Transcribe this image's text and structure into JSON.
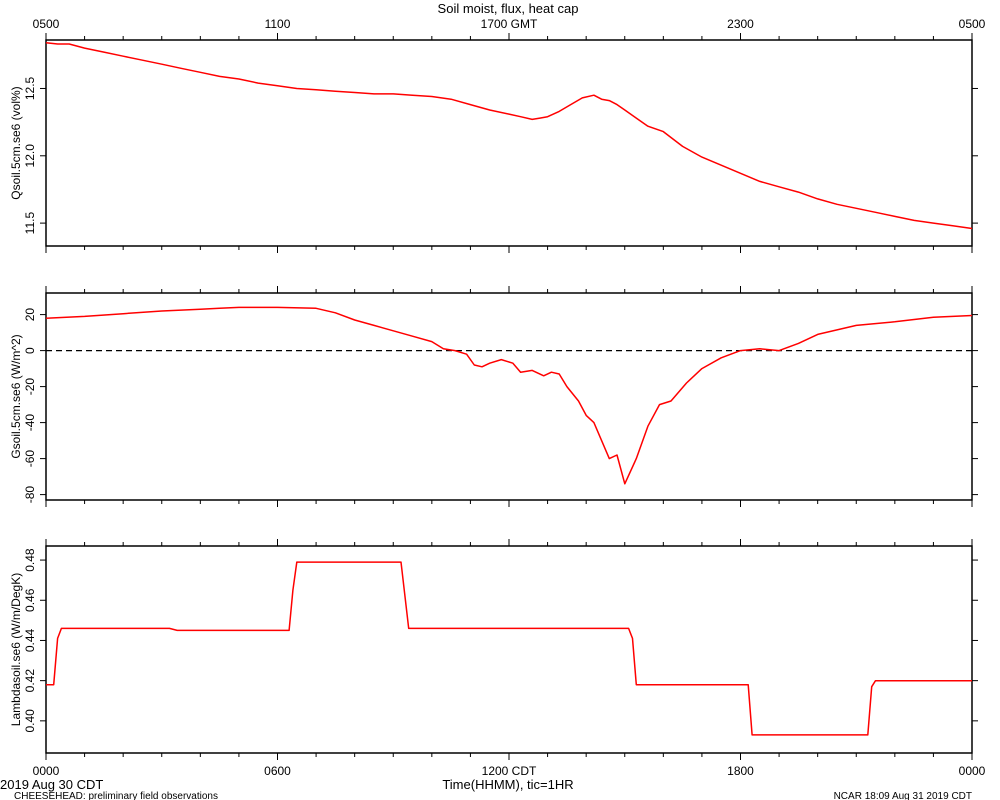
{
  "figure": {
    "title": "Soil moist, flux, heat cap",
    "top_axis_ticks": [
      "0500",
      "1100",
      "1700 GMT",
      "2300",
      "0500"
    ],
    "bottom_axis_ticks": [
      "0000",
      "0600",
      "1200 CDT",
      "1800",
      "0000"
    ],
    "x_axis_label": "Time(HHMM), tic=1HR",
    "date_label": "2019 Aug 30 CDT",
    "footer_left": "CHEESEHEAD: preliminary field observations",
    "footer_right": "NCAR 18:09 Aug 31 2019 CDT",
    "line_color": "#ff0000"
  },
  "chart_data": [
    {
      "type": "line",
      "ylabel": "Qsoil.5cm.se6 (vol%)",
      "xlim": [
        0,
        24
      ],
      "ylim": [
        11.33,
        12.86
      ],
      "yticks": [
        11.5,
        12.0,
        12.5
      ],
      "ytick_labels": [
        "11.5",
        "12.0",
        "12.5"
      ],
      "x": [
        0,
        0.3,
        0.6,
        1,
        1.5,
        2,
        2.5,
        3,
        3.5,
        4,
        4.5,
        5,
        5.5,
        6,
        6.5,
        7,
        7.5,
        8,
        8.5,
        9,
        9.5,
        10,
        10.5,
        11,
        11.5,
        12,
        12.3,
        12.6,
        12.8,
        13,
        13.3,
        13.6,
        13.9,
        14.2,
        14.4,
        14.6,
        14.8,
        15,
        15.3,
        15.6,
        16,
        16.5,
        17,
        17.5,
        18,
        18.5,
        19,
        19.5,
        20,
        20.5,
        21,
        21.5,
        22,
        22.5,
        23,
        23.5,
        24
      ],
      "series": [
        {
          "values": [
            12.84,
            12.83,
            12.83,
            12.8,
            12.77,
            12.74,
            12.71,
            12.68,
            12.65,
            12.62,
            12.59,
            12.57,
            12.54,
            12.52,
            12.5,
            12.49,
            12.48,
            12.47,
            12.46,
            12.46,
            12.45,
            12.44,
            12.42,
            12.38,
            12.34,
            12.31,
            12.29,
            12.27,
            12.28,
            12.29,
            12.33,
            12.38,
            12.43,
            12.45,
            12.42,
            12.41,
            12.38,
            12.34,
            12.28,
            12.22,
            12.18,
            12.07,
            11.99,
            11.93,
            11.87,
            11.81,
            11.77,
            11.73,
            11.68,
            11.64,
            11.61,
            11.58,
            11.55,
            11.52,
            11.5,
            11.48,
            11.46
          ]
        }
      ]
    },
    {
      "type": "line",
      "ylabel": "Gsoil.5cm.se6 (W/m^2)",
      "xlim": [
        0,
        24
      ],
      "ylim": [
        -83,
        32
      ],
      "yticks": [
        -80,
        -60,
        -40,
        -20,
        0,
        20
      ],
      "ytick_labels": [
        "-80",
        "-60",
        "-40",
        "-20",
        "0",
        "20"
      ],
      "reference_line": {
        "y": 0,
        "style": "dashed"
      },
      "x": [
        0,
        1,
        2,
        3,
        4,
        4.5,
        5,
        6,
        7,
        7.5,
        8,
        8.5,
        9,
        9.5,
        10,
        10.3,
        10.6,
        10.9,
        11.1,
        11.3,
        11.5,
        11.8,
        12.1,
        12.3,
        12.6,
        12.9,
        13.1,
        13.3,
        13.5,
        13.8,
        14.0,
        14.2,
        14.4,
        14.6,
        14.8,
        15.0,
        15.3,
        15.6,
        15.9,
        16.2,
        16.6,
        17,
        17.5,
        18,
        18.5,
        19,
        19.5,
        20,
        21,
        22,
        23,
        24
      ],
      "series": [
        {
          "values": [
            18,
            19,
            20.5,
            22,
            23,
            23.5,
            24,
            24,
            23.5,
            21,
            17,
            14,
            11,
            8,
            5,
            1,
            0,
            -2,
            -8,
            -9,
            -7,
            -5,
            -7,
            -12,
            -11,
            -14,
            -12,
            -13,
            -20,
            -28,
            -36,
            -40,
            -50,
            -60,
            -58,
            -74,
            -60,
            -42,
            -30,
            -28,
            -18,
            -10,
            -4,
            0,
            1,
            0,
            4,
            9,
            14,
            16,
            18.5,
            19.5
          ]
        }
      ]
    },
    {
      "type": "line",
      "ylabel": "Lambdasoil.se6 (W/m/DegK)",
      "xlim": [
        0,
        24
      ],
      "ylim": [
        0.384,
        0.487
      ],
      "yticks": [
        0.4,
        0.42,
        0.44,
        0.46,
        0.48
      ],
      "ytick_labels": [
        "0.40",
        "0.42",
        "0.44",
        "0.46",
        "0.48"
      ],
      "x": [
        0,
        0.2,
        0.3,
        0.4,
        3.2,
        3.4,
        6.3,
        6.4,
        6.5,
        9.2,
        9.4,
        15.1,
        15.2,
        15.3,
        18.2,
        18.3,
        18.4,
        21.3,
        21.4,
        21.5,
        24
      ],
      "series": [
        {
          "values": [
            0.418,
            0.418,
            0.441,
            0.446,
            0.446,
            0.445,
            0.445,
            0.465,
            0.479,
            0.479,
            0.446,
            0.446,
            0.441,
            0.418,
            0.418,
            0.393,
            0.393,
            0.393,
            0.417,
            0.42,
            0.42
          ]
        }
      ]
    }
  ]
}
